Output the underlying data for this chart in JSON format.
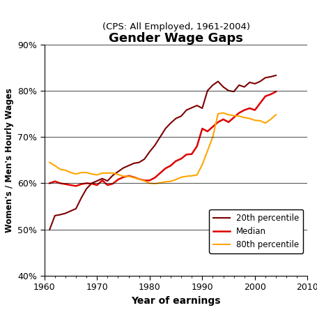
{
  "title": "Gender Wage Gaps",
  "subtitle": "(CPS: All Employed, 1961-2004)",
  "xlabel": "Year of earnings",
  "ylabel": "Women's / Men's Hourly Wages",
  "xlim": [
    1960,
    2010
  ],
  "ylim": [
    0.4,
    0.9
  ],
  "yticks": [
    0.4,
    0.5,
    0.6,
    0.7,
    0.8,
    0.9
  ],
  "xticks": [
    1960,
    1970,
    1980,
    1990,
    2000,
    2010
  ],
  "p20_color": "#7B0000",
  "median_color": "#DD0000",
  "p80_color": "#FFA500",
  "p20_years": [
    1961,
    1962,
    1963,
    1964,
    1965,
    1966,
    1967,
    1968,
    1969,
    1970,
    1971,
    1972,
    1973,
    1974,
    1975,
    1976,
    1977,
    1978,
    1979,
    1980,
    1981,
    1982,
    1983,
    1984,
    1985,
    1986,
    1987,
    1988,
    1989,
    1990,
    1991,
    1992,
    1993,
    1994,
    1995,
    1996,
    1997,
    1998,
    1999,
    2000,
    2001,
    2002,
    2003,
    2004
  ],
  "p20_values": [
    0.5,
    0.53,
    0.532,
    0.535,
    0.54,
    0.545,
    0.568,
    0.588,
    0.6,
    0.605,
    0.61,
    0.605,
    0.617,
    0.625,
    0.633,
    0.638,
    0.643,
    0.645,
    0.652,
    0.668,
    0.682,
    0.7,
    0.718,
    0.73,
    0.74,
    0.745,
    0.758,
    0.763,
    0.768,
    0.762,
    0.8,
    0.812,
    0.82,
    0.808,
    0.8,
    0.798,
    0.812,
    0.808,
    0.818,
    0.815,
    0.82,
    0.828,
    0.83,
    0.833
  ],
  "median_years": [
    1961,
    1962,
    1963,
    1964,
    1965,
    1966,
    1967,
    1968,
    1969,
    1970,
    1971,
    1972,
    1973,
    1974,
    1975,
    1976,
    1977,
    1978,
    1979,
    1980,
    1981,
    1982,
    1983,
    1984,
    1985,
    1986,
    1987,
    1988,
    1989,
    1990,
    1991,
    1992,
    1993,
    1994,
    1995,
    1996,
    1997,
    1998,
    1999,
    2000,
    2001,
    2002,
    2003,
    2004
  ],
  "median_values": [
    0.6,
    0.604,
    0.6,
    0.598,
    0.596,
    0.594,
    0.598,
    0.6,
    0.599,
    0.596,
    0.606,
    0.596,
    0.599,
    0.608,
    0.613,
    0.616,
    0.613,
    0.609,
    0.606,
    0.606,
    0.612,
    0.622,
    0.632,
    0.638,
    0.648,
    0.653,
    0.662,
    0.663,
    0.68,
    0.718,
    0.712,
    0.722,
    0.732,
    0.738,
    0.732,
    0.742,
    0.752,
    0.758,
    0.762,
    0.758,
    0.773,
    0.788,
    0.792,
    0.798
  ],
  "p80_years": [
    1961,
    1962,
    1963,
    1964,
    1965,
    1966,
    1967,
    1968,
    1969,
    1970,
    1971,
    1972,
    1973,
    1974,
    1975,
    1976,
    1977,
    1978,
    1979,
    1980,
    1981,
    1982,
    1983,
    1984,
    1985,
    1986,
    1987,
    1988,
    1989,
    1990,
    1991,
    1992,
    1993,
    1994,
    1995,
    1996,
    1997,
    1998,
    1999,
    2000,
    2001,
    2002,
    2003,
    2004
  ],
  "p80_values": [
    0.645,
    0.638,
    0.63,
    0.628,
    0.623,
    0.62,
    0.623,
    0.623,
    0.62,
    0.618,
    0.622,
    0.622,
    0.622,
    0.619,
    0.615,
    0.615,
    0.612,
    0.609,
    0.605,
    0.6,
    0.599,
    0.601,
    0.603,
    0.604,
    0.608,
    0.613,
    0.615,
    0.616,
    0.618,
    0.64,
    0.67,
    0.7,
    0.75,
    0.752,
    0.748,
    0.746,
    0.745,
    0.742,
    0.74,
    0.736,
    0.735,
    0.73,
    0.738,
    0.748
  ]
}
